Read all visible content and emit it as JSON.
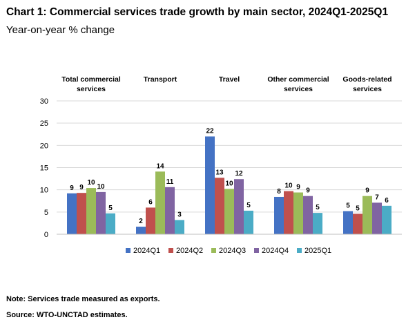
{
  "title": "Chart 1: Commercial services trade growth by main sector, 2024Q1-2025Q1",
  "subtitle": "Year-on-year % change",
  "note": "Note: Services trade measured as exports.",
  "source": "Source: WTO-UNCTAD estimates.",
  "chart_data": {
    "type": "bar",
    "categories": [
      [
        "Total commercial",
        "services"
      ],
      [
        "Transport"
      ],
      [
        "Travel"
      ],
      [
        "Other commercial",
        "services"
      ],
      [
        "Goods-related",
        "services"
      ]
    ],
    "ylim": [
      0,
      30
    ],
    "yticks": [
      0,
      5,
      10,
      15,
      20,
      25,
      30
    ],
    "grid": true,
    "legend_position": "bottom",
    "series": [
      {
        "name": "2024Q1",
        "color": "#4472C4",
        "values": [
          9.2,
          1.7,
          22.0,
          8.4,
          5.2
        ],
        "labels": [
          "9",
          "2",
          "22",
          "8",
          "5"
        ]
      },
      {
        "name": "2024Q2",
        "color": "#C0504D",
        "values": [
          9.3,
          6.0,
          12.7,
          9.7,
          4.6
        ],
        "labels": [
          "9",
          "6",
          "13",
          "10",
          "5"
        ]
      },
      {
        "name": "2024Q3",
        "color": "#9BBB59",
        "values": [
          10.4,
          14.1,
          10.2,
          9.4,
          8.6
        ],
        "labels": [
          "10",
          "14",
          "10",
          "9",
          "9"
        ]
      },
      {
        "name": "2024Q4",
        "color": "#8064A2",
        "values": [
          9.5,
          10.6,
          12.4,
          8.6,
          7.1
        ],
        "labels": [
          "10",
          "11",
          "12",
          "9",
          "7"
        ]
      },
      {
        "name": "2025Q1",
        "color": "#4BACC6",
        "values": [
          4.7,
          3.2,
          5.3,
          4.8,
          6.4
        ],
        "labels": [
          "5",
          "3",
          "5",
          "5",
          "6"
        ]
      }
    ]
  }
}
